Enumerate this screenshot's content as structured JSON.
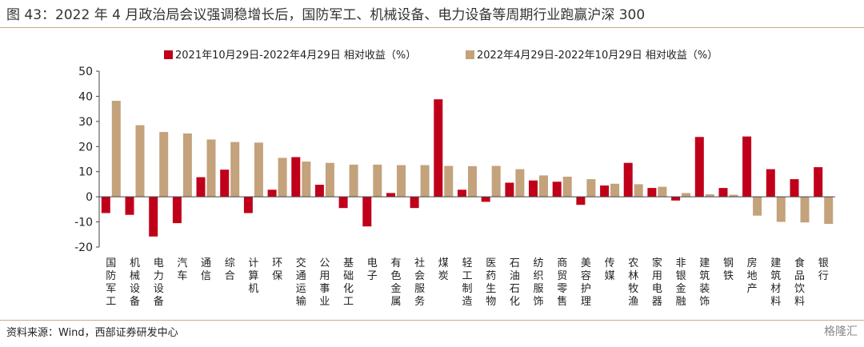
{
  "title": "图 43：2022 年 4 月政治局会议强调稳增长后，国防军工、机械设备、电力设备等周期行业跑赢沪深 300",
  "source": "资料来源：Wind，西部证券研发中心",
  "watermark": "格隆汇",
  "colors": {
    "series1": "#c0001a",
    "series2": "#c3a27c",
    "rule": "#c9a98a",
    "axis": "#444444"
  },
  "chart_data": {
    "type": "bar",
    "categories": [
      "国防军工",
      "机械设备",
      "电力设备",
      "汽车",
      "通信",
      "综合",
      "计算机",
      "环保",
      "交通运输",
      "公用事业",
      "基础化工",
      "电子",
      "有色金属",
      "社会服务",
      "煤炭",
      "轻工制造",
      "医药生物",
      "石油石化",
      "纺织服饰",
      "商贸零售",
      "美容护理",
      "传媒",
      "农林牧渔",
      "家用电器",
      "非银金融",
      "建筑装饰",
      "钢铁",
      "房地产",
      "建筑材料",
      "食品饮料",
      "银行"
    ],
    "series": [
      {
        "name": "2021年10月29日-2022年4月29日 相对收益（%）",
        "values": [
          -6.5,
          -7.2,
          -15.8,
          -10.5,
          7.8,
          10.8,
          -6.5,
          2.8,
          15.8,
          4.8,
          -4.5,
          -11.8,
          1.5,
          -4.5,
          38.8,
          2.8,
          -2.0,
          5.6,
          6.5,
          6.0,
          -3.2,
          4.5,
          13.5,
          3.5,
          -1.5,
          23.8,
          3.5,
          24.0,
          11.0,
          7.0,
          11.8
        ]
      },
      {
        "name": "2022年4月29日-2022年10月29日 相对收益（%）",
        "values": [
          38.2,
          28.5,
          25.8,
          25.2,
          22.8,
          21.8,
          21.6,
          15.5,
          14.0,
          13.5,
          12.8,
          12.8,
          12.6,
          12.6,
          12.3,
          12.2,
          12.3,
          11.0,
          8.5,
          8.0,
          7.0,
          5.2,
          5.0,
          4.0,
          1.5,
          1.0,
          0.8,
          -7.5,
          -10.0,
          -10.2,
          -10.8
        ]
      }
    ],
    "yticks": [
      "50",
      "40",
      "30",
      "20",
      "10",
      "0",
      "-10",
      "-20"
    ],
    "ylim": [
      -20,
      50
    ],
    "legend_position": "top-center"
  }
}
